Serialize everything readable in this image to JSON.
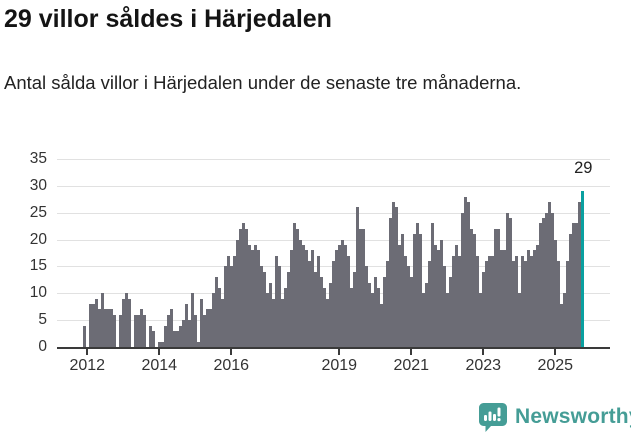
{
  "header": {
    "title": "29 villor såldes i Härjedalen",
    "subtitle": "Antal sålda villor i Härjedalen under de senaste tre månaderna."
  },
  "chart_data": {
    "type": "bar",
    "title": "29 villor såldes i Härjedalen",
    "subtitle": "Antal sålda villor i Härjedalen under de senaste tre månaderna.",
    "unit": "antal sålda villor (rullande 3 månader)",
    "x_start": "2011-12",
    "x_end": "2025-10",
    "x_tick_labels": [
      "2012",
      "2014",
      "2016",
      "2019",
      "2021",
      "2023",
      "2025"
    ],
    "x_tick_indices": [
      1,
      25,
      49,
      85,
      109,
      133,
      157
    ],
    "y_ticks": [
      0,
      5,
      10,
      15,
      20,
      25,
      30,
      35
    ],
    "ylim": [
      0,
      35
    ],
    "grid": true,
    "legend": "none",
    "bar_color": "#6c6c75",
    "highlight_color": "#0aa0a0",
    "highlight_last": true,
    "last_value_label": "29",
    "values": [
      4,
      0,
      8,
      8,
      9,
      7,
      10,
      7,
      7,
      7,
      6,
      0,
      6,
      9,
      10,
      9,
      0,
      6,
      6,
      7,
      6,
      0,
      4,
      3,
      0,
      1,
      1,
      4,
      6,
      7,
      3,
      3,
      4,
      5,
      8,
      5,
      10,
      6,
      1,
      9,
      6,
      7,
      7,
      10,
      13,
      11,
      9,
      15,
      17,
      15,
      17,
      20,
      22,
      23,
      22,
      19,
      18,
      19,
      18,
      15,
      14,
      10,
      12,
      9,
      17,
      15,
      9,
      11,
      14,
      18,
      23,
      22,
      20,
      19,
      18,
      16,
      18,
      14,
      17,
      13,
      11,
      9,
      12,
      16,
      18,
      19,
      20,
      19,
      17,
      11,
      14,
      26,
      22,
      22,
      15,
      12,
      10,
      13,
      11,
      8,
      13,
      16,
      24,
      27,
      26,
      19,
      21,
      17,
      15,
      13,
      21,
      23,
      21,
      10,
      12,
      16,
      23,
      19,
      18,
      20,
      15,
      10,
      13,
      17,
      19,
      17,
      25,
      28,
      27,
      22,
      21,
      17,
      10,
      14,
      16,
      17,
      17,
      22,
      22,
      18,
      18,
      25,
      24,
      16,
      17,
      10,
      17,
      16,
      18,
      17,
      18,
      19,
      23,
      24,
      25,
      27,
      25,
      20,
      16,
      8,
      10,
      16,
      21,
      23,
      23,
      27,
      29
    ]
  },
  "footer": {
    "brand": "Newsworthy",
    "logo_icon": "speech-bubble-with-bar-chart-and-exclamation",
    "logo_color": "#459d96"
  },
  "colors": {
    "bar": "#6c6c75",
    "highlight": "#0aa0a0",
    "axis": "#3a3a3a",
    "gridline": "#e1e1e1",
    "text": "#222222"
  }
}
